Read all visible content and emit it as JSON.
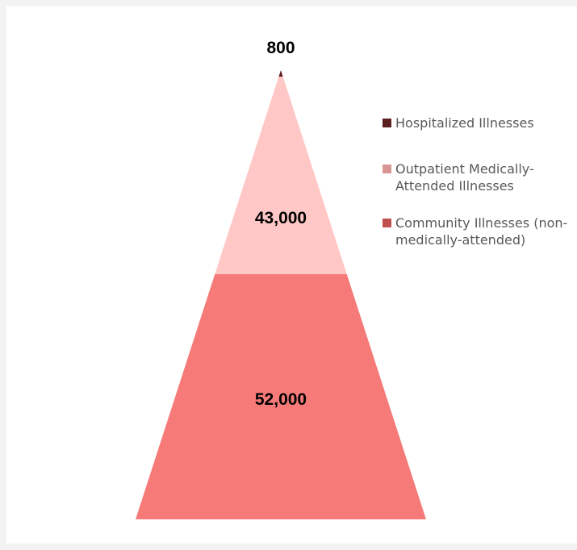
{
  "chart_data": {
    "type": "pyramid",
    "title": "",
    "segments": [
      {
        "name": "Hospitalized Illnesses",
        "value": 800,
        "label": "800",
        "color": "#5c1f1f"
      },
      {
        "name": "Outpatient Medically-Attended Illnesses",
        "value": 43000,
        "label": "43,000",
        "color": "#ffc7c5"
      },
      {
        "name": "Community Illnesses (non-medically-attended)",
        "value": 52000,
        "label": "52,000",
        "color": "#f57a78"
      }
    ],
    "legend": {
      "placement": "right",
      "items": [
        {
          "text": "Hospitalized Illnesses",
          "color": "#5c1f1f"
        },
        {
          "text": "Outpatient Medically-Attended Illnesses",
          "color": "#d99593"
        },
        {
          "text": "Community Illnesses (non-medically-attended)",
          "color": "#c0504d"
        }
      ]
    }
  }
}
